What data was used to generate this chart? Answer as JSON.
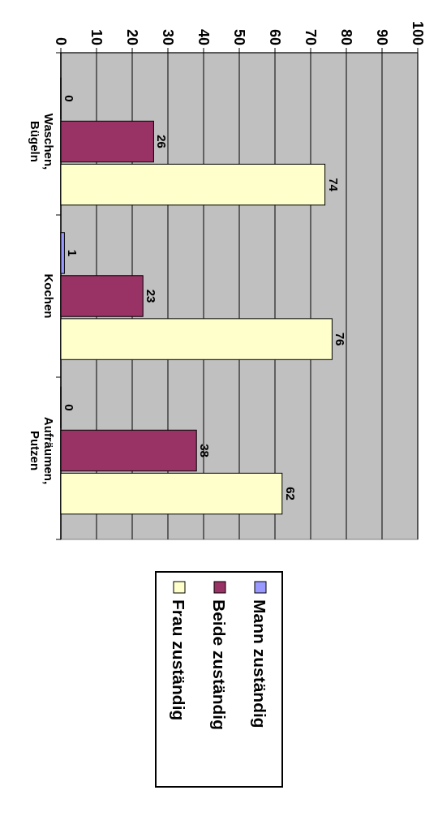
{
  "chart_data": {
    "type": "bar",
    "categories": [
      "Waschen, Bügeln",
      "Kochen",
      "Aufräumen, Putzen"
    ],
    "series": [
      {
        "name": "Mann zuständig",
        "color": "#9999ff",
        "values": [
          0,
          1,
          0
        ]
      },
      {
        "name": "Beide zuständig",
        "color": "#993366",
        "values": [
          26,
          23,
          38
        ]
      },
      {
        "name": "Frau zuständig",
        "color": "#ffffcc",
        "values": [
          74,
          76,
          62
        ]
      }
    ],
    "orientation": "horizontal",
    "xlim": [
      0,
      100
    ],
    "xticks": [
      0,
      10,
      20,
      30,
      40,
      50,
      60,
      70,
      80,
      90,
      100
    ],
    "grid": "x",
    "legend": "bottom",
    "data_labels": true
  }
}
